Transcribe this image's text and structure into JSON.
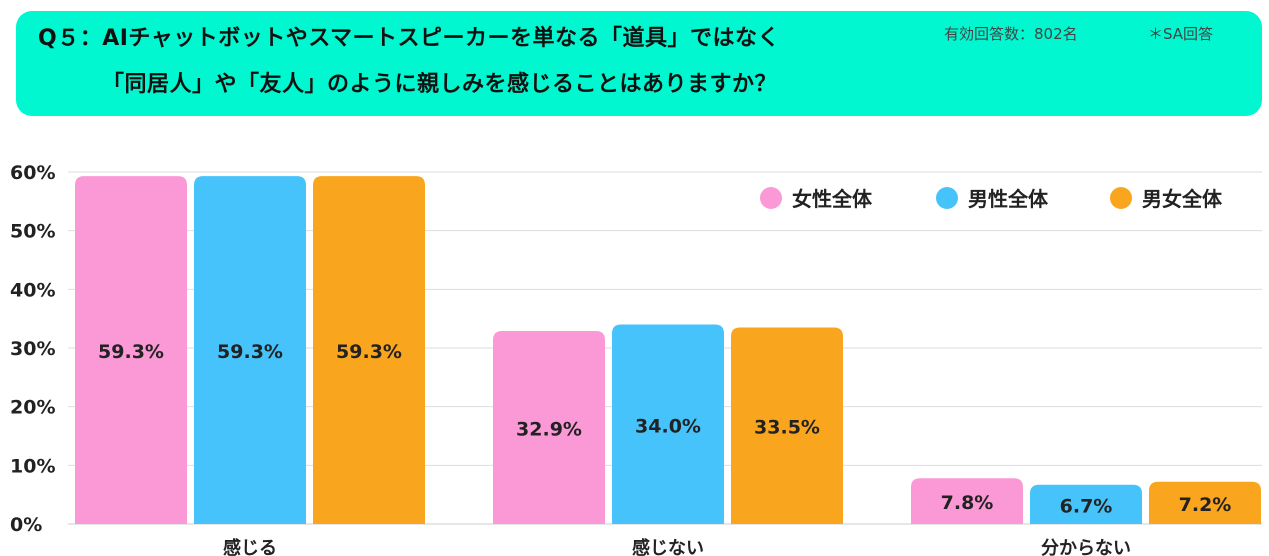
{
  "header": {
    "question_line1": "Q５：AIチャットボットやスマートスピーカーを単なる「道具」ではなく",
    "question_line2": "「同居人」や「友人」のように親しみを感じることはありますか？",
    "respondents": "有効回答数：802名",
    "answer_type": "＊SA回答"
  },
  "colors": {
    "female": "#fb99d6",
    "male": "#46c3fb",
    "all": "#f9a61e",
    "banner": "#00f7cf",
    "grid": "#dddddd"
  },
  "chart_data": {
    "type": "bar",
    "categories": [
      "感じる",
      "感じない",
      "分からない"
    ],
    "series": [
      {
        "name": "女性全体",
        "values": [
          59.3,
          32.9,
          7.8
        ]
      },
      {
        "name": "男性全体",
        "values": [
          59.3,
          34.0,
          6.7
        ]
      },
      {
        "name": "男女全体",
        "values": [
          59.3,
          33.5,
          7.2
        ]
      }
    ],
    "data_labels": [
      [
        "59.3%",
        "32.9%",
        "7.8%"
      ],
      [
        "59.3%",
        "34.0%",
        "6.7%"
      ],
      [
        "59.3%",
        "33.5%",
        "7.2%"
      ]
    ],
    "yticks": [
      "0%",
      "10%",
      "20%",
      "30%",
      "40%",
      "50%",
      "60%"
    ],
    "ylim": [
      0,
      60
    ],
    "grid": true,
    "legend_position": "top-right"
  }
}
